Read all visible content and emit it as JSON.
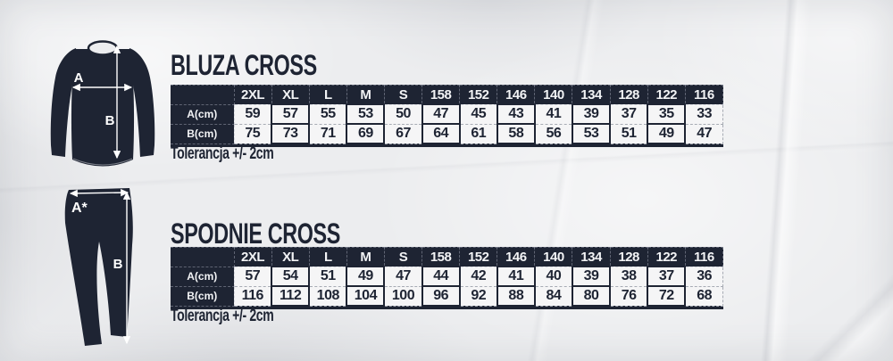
{
  "colors": {
    "ink": "#1e2433",
    "paper": "#ecedef",
    "cell_background": "#f5f5f6",
    "arrow": "#ffffff"
  },
  "illustrations": {
    "sweatshirt": {
      "label_a": "A",
      "label_b": "B"
    },
    "pants": {
      "label_a": "A*",
      "label_b": "B"
    }
  },
  "chart_data": [
    {
      "type": "table",
      "title": "BLUZA CROSS",
      "columns": [
        "2XL",
        "XL",
        "L",
        "M",
        "S",
        "158",
        "152",
        "146",
        "140",
        "134",
        "128",
        "122",
        "116"
      ],
      "rows": [
        {
          "label": "A(cm)",
          "values": [
            59,
            57,
            55,
            53,
            50,
            47,
            45,
            43,
            41,
            39,
            37,
            35,
            33
          ]
        },
        {
          "label": "B(cm)",
          "values": [
            75,
            73,
            71,
            69,
            67,
            64,
            61,
            58,
            56,
            53,
            51,
            49,
            47
          ]
        }
      ],
      "note": "Tolerancja +/- 2cm"
    },
    {
      "type": "table",
      "title": "SPODNIE CROSS",
      "columns": [
        "2XL",
        "XL",
        "L",
        "M",
        "S",
        "158",
        "152",
        "146",
        "140",
        "134",
        "128",
        "122",
        "116"
      ],
      "rows": [
        {
          "label": "A(cm)",
          "values": [
            57,
            54,
            51,
            49,
            47,
            44,
            42,
            41,
            40,
            39,
            38,
            37,
            36
          ]
        },
        {
          "label": "B(cm)",
          "values": [
            116,
            112,
            108,
            104,
            100,
            96,
            92,
            88,
            84,
            80,
            76,
            72,
            68
          ]
        }
      ],
      "note": "Tolerancja +/- 2cm"
    }
  ]
}
